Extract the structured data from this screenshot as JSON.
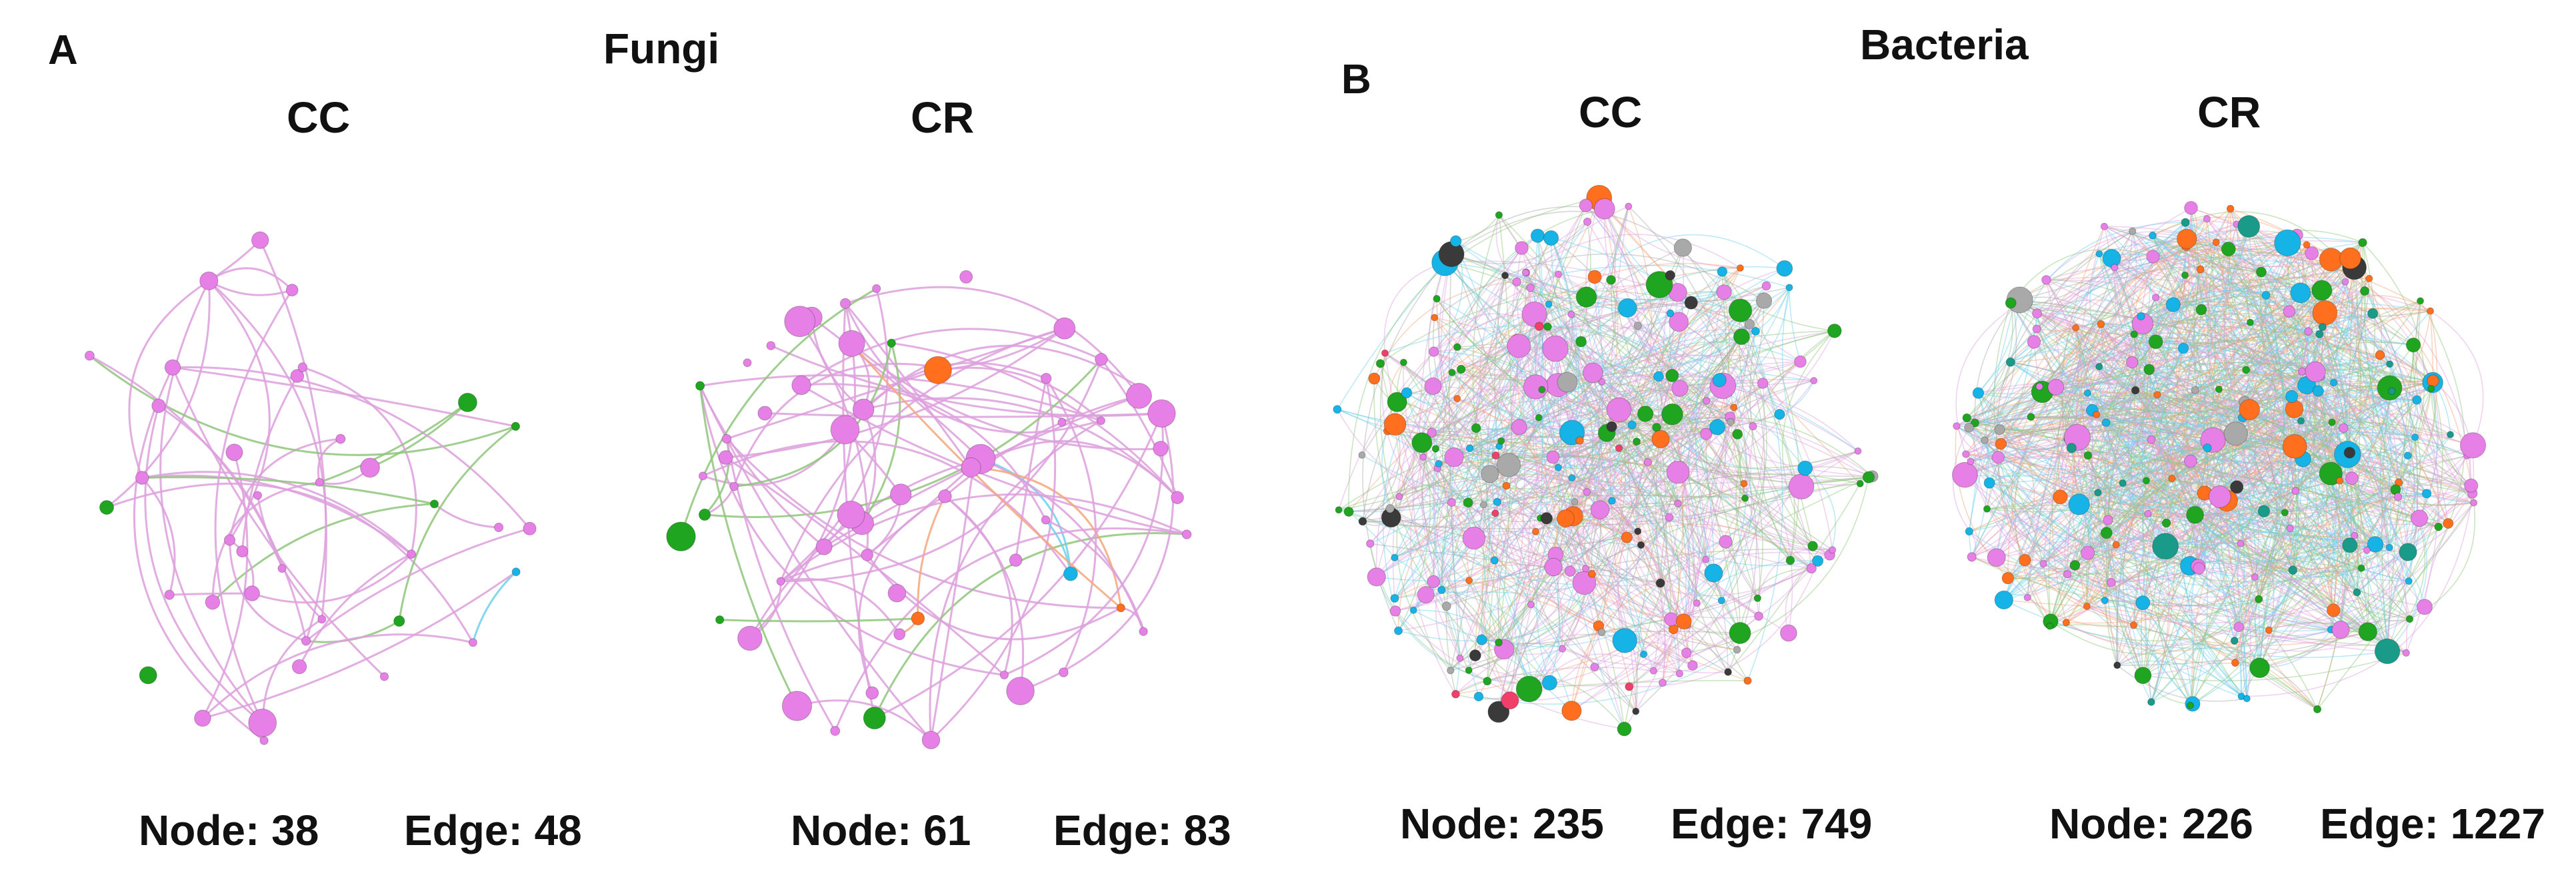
{
  "panels": [
    {
      "letter": "A",
      "title": "Fungi",
      "networks": [
        {
          "label": "CC",
          "node_text": "Node: 38",
          "edge_text": "Edge: 48",
          "nodes": 38,
          "edges": 48,
          "seed": 11
        },
        {
          "label": "CR",
          "node_text": "Node: 61",
          "edge_text": "Edge: 83",
          "nodes": 61,
          "edges": 83,
          "seed": 29
        }
      ]
    },
    {
      "letter": "B",
      "title": "Bacteria",
      "networks": [
        {
          "label": "CC",
          "node_text": "Node: 235",
          "edge_text": "Edge: 749",
          "nodes": 235,
          "edges": 749,
          "seed": 47
        },
        {
          "label": "CR",
          "node_text": "Node: 226",
          "edge_text": "Edge: 1227",
          "nodes": 226,
          "edges": 1227,
          "seed": 83
        }
      ]
    }
  ],
  "colors": {
    "pink": "#e680e6",
    "pink_edge": "#dda0dd",
    "green": "#1fa51f",
    "green_edge": "#8ec57a",
    "orange": "#ff6f1e",
    "orange_edge": "#f5a77a",
    "cyan": "#16b4e6",
    "cyan_edge": "#6fd0ee",
    "dark": "#3a3a3a",
    "gray": "#a9a9a9",
    "red": "#f0406a",
    "teal": "#1a9b8a"
  }
}
